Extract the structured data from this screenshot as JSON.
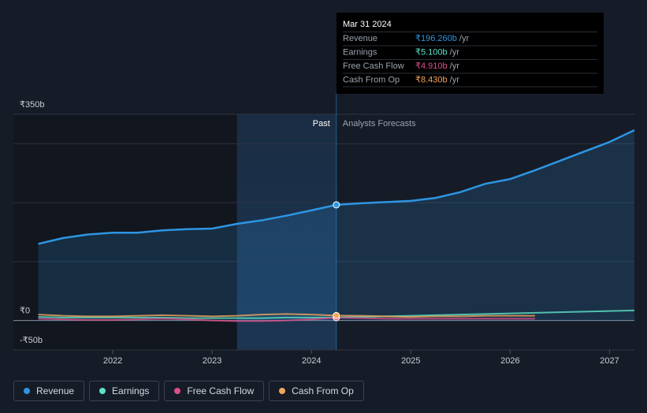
{
  "chart_data": {
    "type": "line",
    "x": [
      2021.25,
      2021.5,
      2021.75,
      2022,
      2022.25,
      2022.5,
      2022.75,
      2023,
      2023.25,
      2023.5,
      2023.75,
      2024,
      2024.25,
      2024.5,
      2024.75,
      2025,
      2025.25,
      2025.5,
      2025.75,
      2026,
      2026.25,
      2026.5,
      2026.75,
      2027,
      2027.25
    ],
    "xlim": [
      2021,
      2027.25
    ],
    "xticks": [
      2022,
      2023,
      2024,
      2025,
      2026,
      2027
    ],
    "ylim": [
      -50,
      350
    ],
    "yticks": [
      {
        "value": 350,
        "label": "₹350b"
      },
      {
        "value": 0,
        "label": "₹0"
      },
      {
        "value": -50,
        "label": "-₹50b"
      }
    ],
    "gridlines": [
      300,
      200,
      100
    ],
    "highlight_range": [
      2023.25,
      2024.25
    ],
    "annotations": {
      "past": "Past",
      "forecast": "Analysts Forecasts"
    },
    "series": [
      {
        "name": "Revenue",
        "color": "#2e95e3",
        "area": true,
        "values": [
          130,
          140,
          146,
          149,
          149,
          153,
          155,
          156,
          164,
          170,
          178,
          187,
          196.26,
          199,
          201,
          203,
          208,
          218,
          232,
          240,
          255,
          271,
          287,
          303,
          323
        ]
      },
      {
        "name": "Earnings",
        "color": "#5fe3c8",
        "values": [
          6,
          5,
          5,
          5,
          5,
          5,
          4,
          4,
          4,
          4,
          5,
          5,
          5.1,
          6,
          7,
          8,
          9,
          10,
          11,
          12,
          13,
          14,
          15,
          16,
          17
        ]
      },
      {
        "name": "Free Cash Flow",
        "color": "#d94f8a",
        "values": [
          3,
          2,
          1,
          1,
          2,
          3,
          2,
          0,
          -1,
          -1,
          0,
          2,
          4.91,
          4,
          3,
          3,
          3,
          3,
          3,
          3,
          3,
          null,
          null,
          null,
          null
        ]
      },
      {
        "name": "Cash From Op",
        "color": "#f2a65a",
        "values": [
          10,
          8,
          7,
          7,
          8,
          9,
          8,
          7,
          8,
          10,
          11,
          10,
          8.43,
          8,
          7,
          6,
          7,
          7,
          8,
          8,
          8,
          null,
          null,
          null,
          null
        ]
      }
    ],
    "tooltip": {
      "title": "Mar 31 2024",
      "index": 12,
      "unit": "/yr",
      "value_labels": [
        "₹196.260b",
        "₹5.100b",
        "₹4.910b",
        "₹8.430b"
      ]
    }
  }
}
